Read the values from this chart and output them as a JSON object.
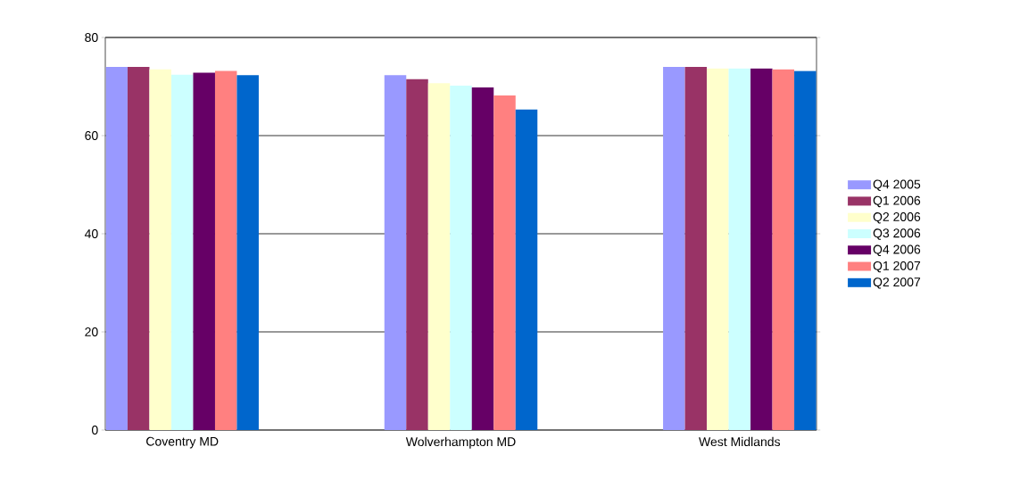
{
  "chart_data": {
    "type": "bar",
    "categories": [
      "Coventry MD",
      "Wolverhampton MD",
      "West Midlands"
    ],
    "series": [
      {
        "name": "Q4 2005",
        "color": "#9999ff",
        "values": [
          74.0,
          72.3,
          74.0
        ]
      },
      {
        "name": "Q1 2006",
        "color": "#993366",
        "values": [
          74.0,
          71.5,
          74.0
        ]
      },
      {
        "name": "Q2 2006",
        "color": "#ffffcc",
        "values": [
          73.5,
          70.7,
          73.7
        ]
      },
      {
        "name": "Q3 2006",
        "color": "#ccffff",
        "values": [
          72.4,
          70.2,
          73.7
        ]
      },
      {
        "name": "Q4 2006",
        "color": "#660066",
        "values": [
          72.8,
          69.8,
          73.7
        ]
      },
      {
        "name": "Q1 2007",
        "color": "#ff8080",
        "values": [
          73.2,
          68.2,
          73.5
        ]
      },
      {
        "name": "Q2 2007",
        "color": "#0066cc",
        "values": [
          72.3,
          65.3,
          73.2
        ]
      }
    ],
    "ylim": [
      0,
      80
    ],
    "yticks": [
      0,
      20,
      40,
      60,
      80
    ],
    "grid": "y",
    "legend": "right"
  }
}
